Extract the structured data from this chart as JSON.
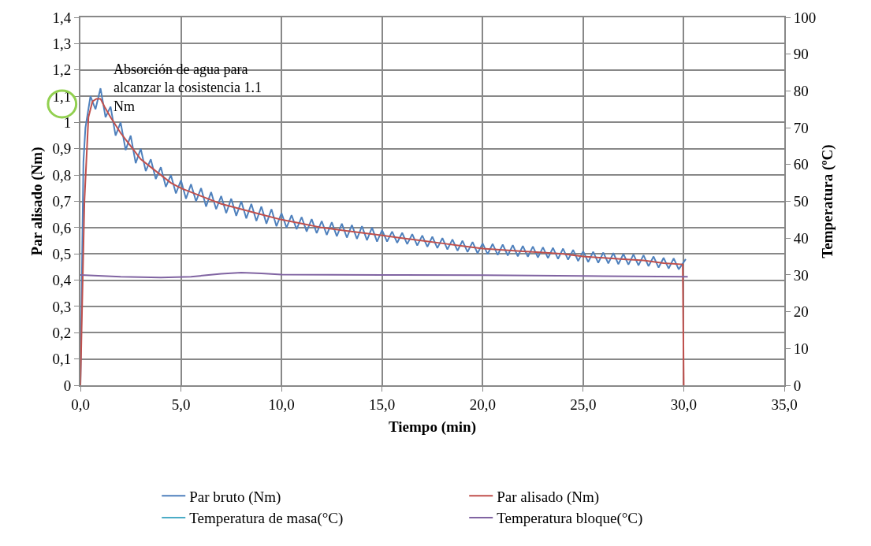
{
  "chart_data": {
    "type": "line",
    "xlabel": "Tiempo (min)",
    "ylabel": "Par alisado (Nm)",
    "y2label": "Temperatura (ºC)",
    "annotations": [
      "Absorción de agua para alcanzar la cosistencia 1.1 Nm"
    ],
    "xlim": [
      0,
      35
    ],
    "xticks": [
      {
        "value": 0,
        "label": "0,0"
      },
      {
        "value": 5,
        "label": "5,0"
      },
      {
        "value": 10,
        "label": "10,0"
      },
      {
        "value": 15,
        "label": "15,0"
      },
      {
        "value": 20,
        "label": "20,0"
      },
      {
        "value": 25,
        "label": "25,0"
      },
      {
        "value": 30,
        "label": "30,0"
      },
      {
        "value": 35,
        "label": "35,0"
      }
    ],
    "ylim": [
      0,
      1.4
    ],
    "yticks": [
      0,
      {
        "value": 0.1,
        "label": "0,1"
      },
      {
        "value": 0.2,
        "label": "0,2"
      },
      {
        "value": 0.3,
        "label": "0,3"
      },
      {
        "value": 0.4,
        "label": "0,4"
      },
      {
        "value": 0.5,
        "label": "0,5"
      },
      {
        "value": 0.6,
        "label": "0,6"
      },
      {
        "value": 0.7,
        "label": "0,7"
      },
      {
        "value": 0.8,
        "label": "0,8"
      },
      {
        "value": 0.9,
        "label": "0,9"
      },
      1,
      {
        "value": 1.1,
        "label": "1,1"
      },
      {
        "value": 1.2,
        "label": "1,2"
      },
      {
        "value": 1.3,
        "label": "1,3"
      },
      {
        "value": 1.4,
        "label": "1,4"
      }
    ],
    "y2lim": [
      0,
      100
    ],
    "y2ticks": [
      0,
      10,
      20,
      30,
      40,
      50,
      60,
      70,
      80,
      90,
      100
    ],
    "grid": true,
    "legend": "bottom",
    "marker": "none",
    "line_style": "solid",
    "series": [
      {
        "name": "Par bruto (Nm)",
        "color": "#4f81bd",
        "x": [
          0,
          0.15,
          0.25,
          0.5,
          0.75,
          1,
          1.25,
          1.5,
          1.75,
          2,
          2.25,
          2.5,
          2.75,
          3,
          3.25,
          3.5,
          3.75,
          4,
          4.25,
          4.5,
          4.75,
          5,
          5.25,
          5.5,
          5.75,
          6,
          6.25,
          6.5,
          6.75,
          7,
          7.25,
          7.5,
          7.75,
          8,
          8.25,
          8.5,
          8.75,
          9,
          9.25,
          9.5,
          9.75,
          10,
          10.25,
          10.5,
          10.75,
          11,
          11.25,
          11.5,
          11.75,
          12,
          12.25,
          12.5,
          12.75,
          13,
          13.25,
          13.5,
          13.75,
          14,
          14.25,
          14.5,
          14.75,
          15,
          15.25,
          15.5,
          15.75,
          16,
          16.25,
          16.5,
          16.75,
          17,
          17.25,
          17.5,
          17.75,
          18,
          18.25,
          18.5,
          18.75,
          19,
          19.25,
          19.5,
          19.75,
          20,
          20.25,
          20.5,
          20.75,
          21,
          21.25,
          21.5,
          21.75,
          22,
          22.25,
          22.5,
          22.75,
          23,
          23.25,
          23.5,
          23.75,
          24,
          24.25,
          24.5,
          24.75,
          25,
          25.25,
          25.5,
          25.75,
          26,
          26.25,
          26.5,
          26.75,
          27,
          27.25,
          27.5,
          27.75,
          28,
          28.25,
          28.5,
          28.75,
          29,
          29.25,
          29.5,
          29.75,
          30.1
        ],
        "values": [
          0,
          0.85,
          0.98,
          1.1,
          1.05,
          1.13,
          1.02,
          1.06,
          0.95,
          1,
          0.895,
          0.95,
          0.845,
          0.9,
          0.815,
          0.86,
          0.785,
          0.83,
          0.755,
          0.8,
          0.73,
          0.78,
          0.71,
          0.765,
          0.7,
          0.75,
          0.68,
          0.735,
          0.67,
          0.72,
          0.655,
          0.71,
          0.645,
          0.7,
          0.635,
          0.69,
          0.625,
          0.68,
          0.615,
          0.67,
          0.605,
          0.655,
          0.6,
          0.647,
          0.594,
          0.64,
          0.585,
          0.632,
          0.579,
          0.625,
          0.572,
          0.62,
          0.567,
          0.615,
          0.562,
          0.61,
          0.557,
          0.605,
          0.552,
          0.6,
          0.547,
          0.59,
          0.547,
          0.585,
          0.542,
          0.58,
          0.537,
          0.575,
          0.532,
          0.57,
          0.527,
          0.565,
          0.522,
          0.56,
          0.517,
          0.555,
          0.512,
          0.55,
          0.507,
          0.545,
          0.502,
          0.54,
          0.499,
          0.538,
          0.496,
          0.535,
          0.494,
          0.533,
          0.491,
          0.53,
          0.489,
          0.528,
          0.486,
          0.525,
          0.484,
          0.523,
          0.481,
          0.52,
          0.478,
          0.515,
          0.473,
          0.51,
          0.469,
          0.508,
          0.466,
          0.505,
          0.464,
          0.503,
          0.461,
          0.5,
          0.459,
          0.498,
          0.456,
          0.495,
          0.453,
          0.49,
          0.448,
          0.485,
          0.444,
          0.483,
          0.441,
          0.48
        ]
      },
      {
        "name": "Par alisado (Nm)",
        "color": "#c0504d",
        "x": [
          0,
          0.2,
          0.4,
          0.6,
          0.8,
          1,
          1.2,
          1.5,
          2,
          2.5,
          3,
          3.5,
          4,
          4.5,
          5,
          6,
          7,
          8,
          9,
          10,
          11,
          12,
          13,
          14,
          15,
          16,
          17,
          18,
          19,
          20,
          21,
          22,
          23,
          24,
          25,
          26,
          27,
          28,
          29,
          29.95,
          30
        ],
        "values": [
          0,
          0.7,
          1.02,
          1.08,
          1.09,
          1.09,
          1.06,
          1.02,
          0.96,
          0.91,
          0.86,
          0.83,
          0.8,
          0.77,
          0.75,
          0.72,
          0.69,
          0.67,
          0.65,
          0.63,
          0.615,
          0.6,
          0.59,
          0.58,
          0.57,
          0.56,
          0.55,
          0.54,
          0.53,
          0.52,
          0.515,
          0.51,
          0.505,
          0.5,
          0.49,
          0.485,
          0.48,
          0.475,
          0.465,
          0.46,
          0
        ]
      },
      {
        "name": "Temperatura de masa(°C)",
        "color": "#4bacc6",
        "axis": "y2"
      },
      {
        "name": "Temperatura bloque(°C)",
        "color": "#8064a2",
        "axis": "y2",
        "x": [
          0,
          2,
          4,
          5.5,
          7,
          8,
          9,
          10,
          15,
          20,
          25,
          30.2
        ],
        "values": [
          30,
          29.5,
          29.3,
          29.5,
          30.3,
          30.6,
          30.4,
          30.1,
          30,
          29.9,
          29.7,
          29.5
        ]
      }
    ]
  }
}
